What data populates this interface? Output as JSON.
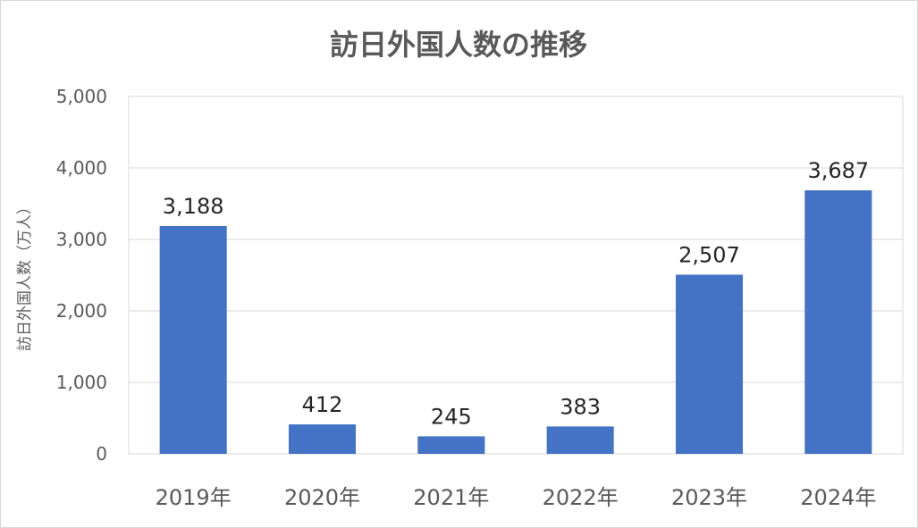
{
  "chart_data": {
    "type": "bar",
    "title": "訪日外国人数の推移",
    "ylabel": "訪日外国人数（万人）",
    "xlabel": "",
    "categories": [
      "2019年",
      "2020年",
      "2021年",
      "2022年",
      "2023年",
      "2024年"
    ],
    "values": [
      3188,
      412,
      245,
      383,
      2507,
      3687
    ],
    "data_labels": [
      "3,188",
      "412",
      "245",
      "383",
      "2,507",
      "3,687"
    ],
    "ylim": [
      0,
      5000
    ],
    "yticks": [
      0,
      1000,
      2000,
      3000,
      4000,
      5000
    ],
    "ytick_labels": [
      "0",
      "1,000",
      "2,000",
      "3,000",
      "4,000",
      "5,000"
    ],
    "grid": true,
    "bar_color": "#4472c4"
  }
}
